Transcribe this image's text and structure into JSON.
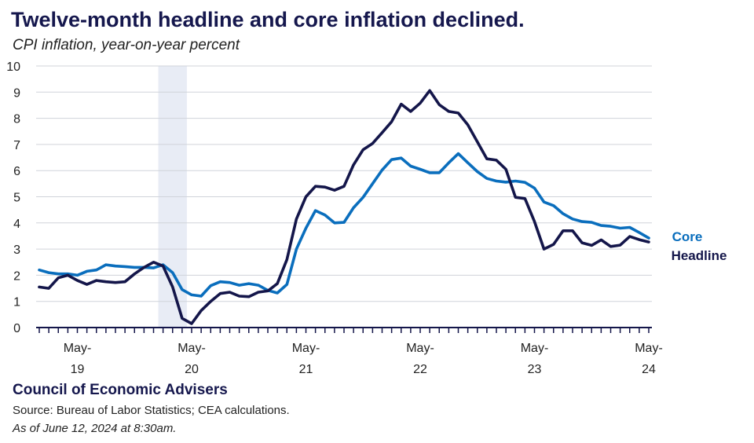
{
  "header": {
    "title": "Twelve-month headline and core inflation declined.",
    "subtitle": "CPI inflation, year-on-year percent"
  },
  "footer": {
    "org": "Council of Economic Advisers",
    "source": "Source: Bureau of Labor Statistics; CEA calculations.",
    "as_of": "As of June 12, 2024 at 8:30am."
  },
  "chart_data": {
    "type": "line",
    "title": "Twelve-month headline and core inflation declined.",
    "subtitle": "CPI inflation, year-on-year percent",
    "xlabel": "",
    "ylabel": "",
    "ylim": [
      0,
      10
    ],
    "yticks": [
      0,
      1,
      2,
      3,
      4,
      5,
      6,
      7,
      8,
      9,
      10
    ],
    "grid": true,
    "x_start": "2019-01",
    "x_end": "2024-05",
    "x_tick_labels": [
      {
        "top": "May-",
        "bottom": "19",
        "month": "2019-05"
      },
      {
        "top": "May-",
        "bottom": "20",
        "month": "2020-05"
      },
      {
        "top": "May-",
        "bottom": "21",
        "month": "2021-05"
      },
      {
        "top": "May-",
        "bottom": "22",
        "month": "2022-05"
      },
      {
        "top": "May-",
        "bottom": "23",
        "month": "2023-05"
      },
      {
        "top": "May-",
        "bottom": "24",
        "month": "2024-05"
      }
    ],
    "shaded_period": {
      "start": "2020-02",
      "end": "2020-04",
      "color": "#e8ecf5"
    },
    "series": [
      {
        "name": "Headline",
        "color": "#14164a",
        "values": [
          1.55,
          1.5,
          1.9,
          2.0,
          1.8,
          1.65,
          1.8,
          1.75,
          1.72,
          1.75,
          2.05,
          2.3,
          2.5,
          2.35,
          1.55,
          0.35,
          0.15,
          0.65,
          1.0,
          1.3,
          1.35,
          1.2,
          1.18,
          1.35,
          1.4,
          1.68,
          2.6,
          4.15,
          5.0,
          5.4,
          5.37,
          5.25,
          5.4,
          6.22,
          6.8,
          7.04,
          7.45,
          7.87,
          8.54,
          8.26,
          8.58,
          9.06,
          8.52,
          8.26,
          8.2,
          7.75,
          7.1,
          6.45,
          6.4,
          6.05,
          4.98,
          4.93,
          4.05,
          3.0,
          3.18,
          3.7,
          3.7,
          3.24,
          3.14,
          3.35,
          3.1,
          3.15,
          3.48,
          3.36,
          3.27
        ]
      },
      {
        "name": "Core",
        "color": "#0a6ebd",
        "values": [
          2.2,
          2.1,
          2.05,
          2.05,
          2.0,
          2.15,
          2.2,
          2.4,
          2.35,
          2.33,
          2.3,
          2.3,
          2.28,
          2.4,
          2.1,
          1.45,
          1.25,
          1.2,
          1.6,
          1.75,
          1.72,
          1.62,
          1.68,
          1.62,
          1.42,
          1.32,
          1.65,
          3.0,
          3.8,
          4.47,
          4.3,
          4.0,
          4.02,
          4.58,
          4.98,
          5.5,
          6.02,
          6.42,
          6.48,
          6.17,
          6.05,
          5.92,
          5.92,
          6.3,
          6.65,
          6.3,
          5.96,
          5.7,
          5.6,
          5.56,
          5.6,
          5.55,
          5.33,
          4.8,
          4.66,
          4.35,
          4.15,
          4.05,
          4.02,
          3.9,
          3.87,
          3.8,
          3.83,
          3.63,
          3.42
        ]
      }
    ]
  }
}
